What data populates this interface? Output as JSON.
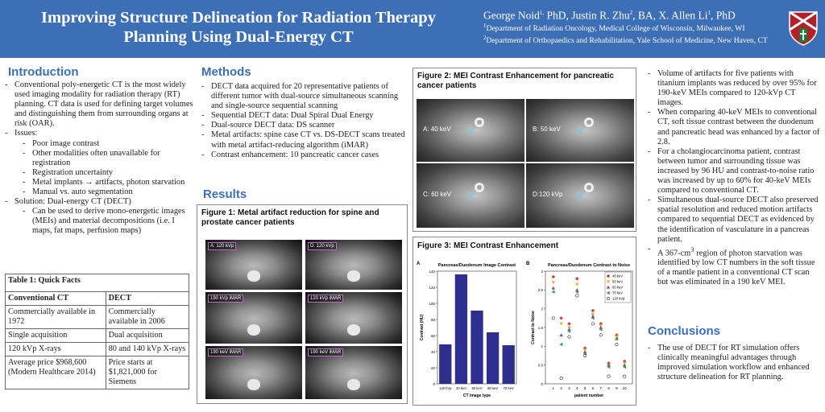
{
  "header": {
    "title": "Improving Structure Delineation for Radiation Therapy Planning Using Dual-Energy CT",
    "authors_html": "George Noid<sup>1,</sup> PhD, Justin R. Zhu<sup>2</sup>, BA, X. Allen Li<sup>1</sup>, PhD",
    "affiliations_html": "<sup>1</sup>Department of Radiation Oncology, Medical College of Wisconsin, Milwaukee, WI<br><sup>2</sup>Department of Orthopaedics and Rehabilitation, Yale School of Medicine, New Haven, CT",
    "logo_icon": "shield-crest-icon"
  },
  "intro": {
    "heading": "Introduction",
    "items": [
      {
        "level": 1,
        "text": "Conventional poly-energetic CT is the most widely used imaging modality for radiation therapy (RT) planning. CT data is used for defining target volumes and distinguishing them from surrounding organs at risk (OAR)."
      },
      {
        "level": 1,
        "text": "Issues:"
      },
      {
        "level": 2,
        "text": "Poor image contrast"
      },
      {
        "level": 2,
        "text": "Other modalities often unavailable for registration"
      },
      {
        "level": 2,
        "text": "Registration uncertainty"
      },
      {
        "level": 2,
        "text": "Metal implants → artifacts, photon starvation"
      },
      {
        "level": 2,
        "text": "Manual vs. auto segmentation"
      },
      {
        "level": 1,
        "text": "Solution: Dual-energy CT (DECT)"
      },
      {
        "level": 2,
        "text": "Can be used to derive mono-energetic images (MEIs) and material decompositions (i.e. I maps, fat maps, perfusion maps)"
      }
    ]
  },
  "table": {
    "caption": "Table 1: Quick Facts",
    "headers": [
      "Conventional CT",
      "DECT"
    ],
    "rows": [
      [
        "Commercially available in 1972",
        "Commercially available in 2006"
      ],
      [
        "Single acquisition",
        "Dual acquisition"
      ],
      [
        "120 kVp X-rays",
        "80 and 140 kVp X-rays"
      ],
      [
        "Average price $968,600 (Modern Healthcare 2014)",
        "Price starts at $1,821,000 for Siemens"
      ]
    ]
  },
  "methods": {
    "heading": "Methods",
    "items": [
      {
        "level": 1,
        "text": "DECT data acquired for 20 representative patients of different tumor with dual-source simultaneous scanning and single-source sequential scanning"
      },
      {
        "level": 1,
        "text": "Sequential DECT data: Dual Spiral Dual Energy"
      },
      {
        "level": 1,
        "text": "Dual-source DECT data: DS scanner"
      },
      {
        "level": 1,
        "text": "Metal artifacts: spine case CT vs. DS-DECT scans treated with metal artifact-reducing algorithm (iMAR)"
      },
      {
        "level": 1,
        "text": "Contrast enhancement: 10 pancreatic cancer cases"
      }
    ]
  },
  "results": {
    "heading": "Results"
  },
  "figure1": {
    "caption": "Figure 1: Metal artifact reduction for spine and prostate cancer patients",
    "panels": [
      "A: 120 kVp",
      "D: 120 kVp",
      "190 kVp iMAR",
      "120 kVp iMAR",
      "190 keV iMAR",
      "190 keV iMAR"
    ]
  },
  "figure2": {
    "caption": "Figure 2: MEI Contrast Enhancement for pancreatic cancer patients",
    "panels": [
      "A: 40 keV",
      "B: 50 keV",
      "C: 60 keV",
      "D:120 kVp"
    ]
  },
  "figure3": {
    "caption": "Figure 3: MEI Contrast Enhancement"
  },
  "chart_data": [
    {
      "type": "bar",
      "panel": "A",
      "title": "Pancreas/Duodenum Image Contrast",
      "xlabel": "CT image type",
      "ylabel": "Contrast (HU)",
      "categories": [
        "120 kVp",
        "40 keV",
        "50 keV",
        "60 keV",
        "70 keV"
      ],
      "values": [
        49,
        136,
        91,
        64,
        48
      ],
      "ylim": [
        0,
        140
      ],
      "yticks": [
        0,
        20,
        40,
        60,
        80,
        100,
        120,
        140
      ],
      "color": "#2e2e8f"
    },
    {
      "type": "scatter",
      "panel": "B",
      "title": "Pancreas/Duodenum Contrast to Noise",
      "xlabel": "patient number",
      "ylabel": "Contrast to Noise",
      "xlim": [
        0,
        11
      ],
      "ylim": [
        0,
        3
      ],
      "xticks": [
        1,
        2,
        3,
        4,
        5,
        6,
        7,
        8,
        9,
        10
      ],
      "yticks": [
        0,
        0.5,
        1,
        1.5,
        2,
        2.5,
        3
      ],
      "legend_position": "top-right",
      "series": [
        {
          "name": "40 keV",
          "color": "#e03030",
          "marker": "diamond",
          "values": [
            2.85,
            1.75,
            1.6,
            2.8,
            0.95,
            1.95,
            1.6,
            0.55,
            1.3,
            0.6
          ]
        },
        {
          "name": "50 keV",
          "color": "#e8b020",
          "marker": "triangle-down",
          "values": [
            2.7,
            1.6,
            1.5,
            2.65,
            0.9,
            1.85,
            1.55,
            0.5,
            1.25,
            0.55
          ]
        },
        {
          "name": "60 keV",
          "color": "#9040c0",
          "marker": "triangle-up",
          "values": [
            2.55,
            1.3,
            1.45,
            2.5,
            0.85,
            1.8,
            1.5,
            0.5,
            1.2,
            0.5
          ]
        },
        {
          "name": "70 keV",
          "color": "#30a040",
          "marker": "triangle-left",
          "values": [
            2.45,
            1.05,
            1.4,
            2.45,
            0.8,
            1.75,
            1.45,
            0.45,
            1.2,
            0.45
          ]
        },
        {
          "name": "120 kVp",
          "color": "#333333",
          "marker": "circle",
          "values": [
            1.75,
            0.15,
            1.25,
            2.35,
            0.75,
            1.6,
            1.3,
            0.2,
            1.05,
            0.2
          ]
        }
      ]
    }
  ],
  "findings": {
    "items": [
      {
        "level": 1,
        "text": "Volume of artifacts for five patients with titanium implants was reduced by over 95% for 190-keV MEIs compared to 120-kVp CT images."
      },
      {
        "level": 1,
        "text": "When comparing 40-keV MEIs to conventional CT, soft tissue contrast between the duodenum and pancreatic head was enhanced by a factor of 2.8."
      },
      {
        "level": 1,
        "text": "For a cholangiocarcinoma patient, contrast between tumor and surrounding tissue was increased by 96 HU and contrast-to-noise ratio was increased by up to 60% for 40-keV MEIs compared to conventional CT."
      },
      {
        "level": 1,
        "text": "Simultaneous dual-source DECT also preserved spatial resolution and reduced motion artifacts compared to sequential DECT as evidenced by the identification of vasculature in a pancreas patient."
      },
      {
        "level": 1,
        "text_html": "A 367-cm<sup>3</sup> region of photon starvation was identified by low CT numbers in the soft tissue of a mantle patient in a conventional CT scan but was eliminated in a 190 keV MEI."
      }
    ]
  },
  "conclusions": {
    "heading": "Conclusions",
    "items": [
      {
        "level": 1,
        "text": "The use of DECT for RT simulation offers clinically meaningful advantages through improved simulation workflow and enhanced structure delineation for RT planning."
      }
    ]
  }
}
